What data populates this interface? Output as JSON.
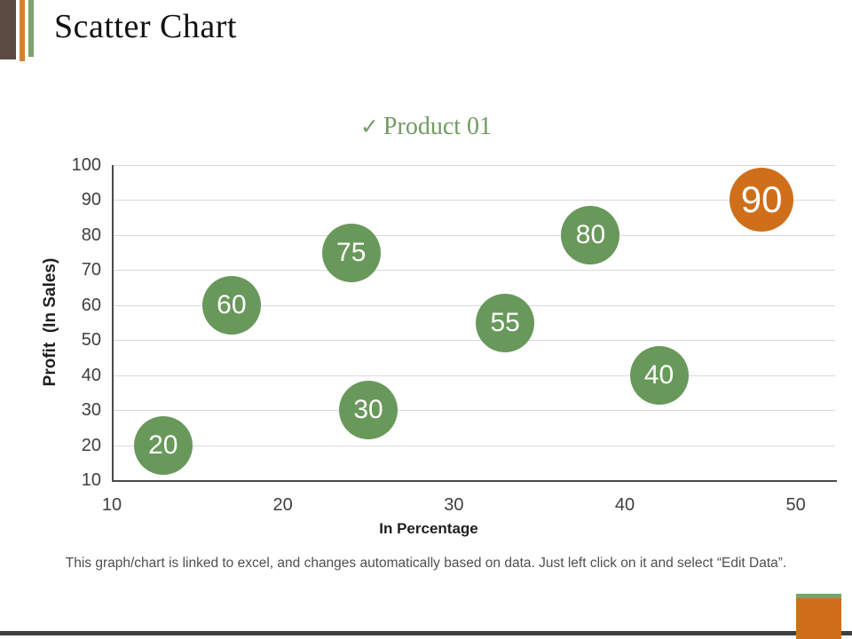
{
  "slide": {
    "title": "Scatter Chart",
    "footer": "This graph/chart is linked to excel, and changes automatically based on data. Just left click on it and select “Edit Data”."
  },
  "legend": {
    "checkmark": "✓",
    "label": "Product 01"
  },
  "colors": {
    "accent_brown": "#5a4a42",
    "accent_orange": "#d8812c",
    "accent_green": "#7ba36a",
    "bubble_green": "#69985b",
    "bubble_orange": "#d06f1a",
    "grid_line": "#d9d9d9",
    "axis_line": "#4a4a4a",
    "legend_text": "#6f9c63",
    "bottom_bar": "#3f3f3f"
  },
  "chart_data": {
    "type": "scatter",
    "title": "",
    "series_name": "Product 01",
    "xlabel": "In Percentage",
    "ylabel": "Profit  (In Sales)",
    "x_ticks": [
      10,
      20,
      30,
      40,
      50
    ],
    "y_ticks": [
      10,
      20,
      30,
      40,
      50,
      60,
      70,
      80,
      90,
      100
    ],
    "xlim": [
      10,
      52.3
    ],
    "ylim": [
      10,
      100
    ],
    "grid": "horizontal-only",
    "legend_position": "top-center",
    "points": [
      {
        "x": 13,
        "y": 20,
        "label": "20",
        "color": "#69985b",
        "r": 33
      },
      {
        "x": 17,
        "y": 60,
        "label": "60",
        "color": "#69985b",
        "r": 33
      },
      {
        "x": 24,
        "y": 75,
        "label": "75",
        "color": "#69985b",
        "r": 33
      },
      {
        "x": 25,
        "y": 30,
        "label": "30",
        "color": "#69985b",
        "r": 33
      },
      {
        "x": 33,
        "y": 55,
        "label": "55",
        "color": "#69985b",
        "r": 33
      },
      {
        "x": 38,
        "y": 80,
        "label": "80",
        "color": "#69985b",
        "r": 33
      },
      {
        "x": 42,
        "y": 40,
        "label": "40",
        "color": "#69985b",
        "r": 33
      },
      {
        "x": 48,
        "y": 90,
        "label": "90",
        "color": "#d06f1a",
        "r": 36
      }
    ]
  }
}
